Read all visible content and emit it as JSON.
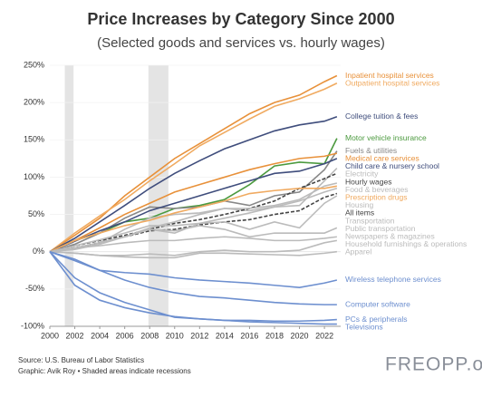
{
  "chart_data": {
    "type": "line",
    "title": "Price Increases by Category Since 2000",
    "subtitle": "(Selected goods and services vs. hourly wages)",
    "source": "Source: U.S. Bureau of Labor Statistics",
    "credit": "Graphic: Avik Roy • Shaded areas indicate recessions",
    "logo": "FREOPP.org",
    "x": [
      2000,
      2002,
      2004,
      2006,
      2008,
      2010,
      2012,
      2014,
      2016,
      2018,
      2020,
      2022,
      2023
    ],
    "xlim": [
      2000,
      2023.3
    ],
    "xticks": [
      2000,
      2002,
      2004,
      2006,
      2008,
      2010,
      2012,
      2014,
      2016,
      2018,
      2020,
      2022
    ],
    "ylim": [
      -100,
      250
    ],
    "yticks": [
      {
        "value": -100,
        "label": "-100%"
      },
      {
        "value": -50,
        "label": "-50%"
      },
      {
        "value": 0,
        "label": "0%"
      },
      {
        "value": 50,
        "label": "50%"
      },
      {
        "value": 100,
        "label": "100%"
      },
      {
        "value": 150,
        "label": "150%"
      },
      {
        "value": 200,
        "label": "200%"
      },
      {
        "value": 250,
        "label": "250%"
      }
    ],
    "recessions": [
      [
        2001.2,
        2001.9
      ],
      [
        2007.9,
        2009.5
      ]
    ],
    "series": [
      {
        "name": "Inpatient hospital services",
        "color": "#e8913a",
        "values": [
          0,
          22,
          45,
          75,
          100,
          125,
          145,
          165,
          185,
          200,
          210,
          228,
          236
        ]
      },
      {
        "name": "Outpatient hospital services",
        "color": "#f0aa60",
        "values": [
          0,
          25,
          48,
          70,
          95,
          118,
          142,
          160,
          178,
          195,
          205,
          218,
          226
        ]
      },
      {
        "name": "College tuition & fees",
        "color": "#3f4d7c",
        "values": [
          0,
          18,
          40,
          62,
          85,
          105,
          122,
          138,
          150,
          162,
          170,
          175,
          181
        ]
      },
      {
        "name": "Motor vehicle insurance",
        "color": "#4c9a3f",
        "values": [
          0,
          15,
          25,
          40,
          45,
          58,
          62,
          70,
          90,
          115,
          120,
          118,
          152
        ]
      },
      {
        "name": "Fuels & utilities",
        "color": "#888888",
        "values": [
          0,
          10,
          25,
          45,
          60,
          58,
          60,
          68,
          62,
          75,
          80,
          110,
          135
        ]
      },
      {
        "name": "Medical care services",
        "color": "#e8913a",
        "values": [
          0,
          15,
          32,
          50,
          65,
          80,
          90,
          100,
          110,
          118,
          125,
          128,
          132
        ]
      },
      {
        "name": "Child care & nursery school",
        "color": "#3f4d7c",
        "values": [
          0,
          14,
          28,
          40,
          55,
          65,
          75,
          85,
          95,
          105,
          108,
          118,
          125
        ]
      },
      {
        "name": "Electricity",
        "color": "#bbbbbb",
        "values": [
          0,
          5,
          12,
          30,
          45,
          50,
          52,
          58,
          55,
          60,
          62,
          95,
          112
        ]
      },
      {
        "name": "Hourly wages",
        "color": "#444444",
        "dashed": true,
        "values": [
          0,
          8,
          15,
          22,
          30,
          38,
          43,
          50,
          58,
          68,
          85,
          98,
          105
        ]
      },
      {
        "name": "Food & beverages",
        "color": "#bbbbbb",
        "values": [
          0,
          5,
          12,
          20,
          32,
          40,
          50,
          58,
          58,
          62,
          70,
          88,
          92
        ]
      },
      {
        "name": "Prescription drugs",
        "color": "#f0aa60",
        "values": [
          0,
          15,
          25,
          35,
          42,
          52,
          60,
          68,
          78,
          82,
          85,
          85,
          88
        ]
      },
      {
        "name": "Housing",
        "color": "#bbbbbb",
        "values": [
          0,
          8,
          16,
          25,
          35,
          35,
          38,
          45,
          52,
          60,
          68,
          80,
          85
        ]
      },
      {
        "name": "All items",
        "color": "#444444",
        "dashed": true,
        "values": [
          0,
          5,
          12,
          20,
          28,
          30,
          36,
          40,
          43,
          50,
          55,
          73,
          78
        ]
      },
      {
        "name": "Transportation",
        "color": "#bbbbbb",
        "values": [
          0,
          3,
          10,
          20,
          30,
          25,
          38,
          40,
          30,
          40,
          32,
          65,
          75
        ]
      },
      {
        "name": "Public transportation",
        "color": "#bbbbbb",
        "values": [
          0,
          5,
          12,
          20,
          30,
          28,
          35,
          30,
          20,
          25,
          25,
          25,
          32
        ]
      },
      {
        "name": "Newspapers & magazines",
        "color": "#bbbbbb",
        "values": [
          0,
          5,
          8,
          12,
          15,
          15,
          18,
          20,
          18,
          15,
          15,
          18,
          20
        ]
      },
      {
        "name": "Household furnishings & operations",
        "color": "#bbbbbb",
        "values": [
          0,
          -2,
          -5,
          -5,
          -3,
          -5,
          0,
          2,
          0,
          0,
          2,
          12,
          15
        ]
      },
      {
        "name": "Apparel",
        "color": "#bbbbbb",
        "values": [
          0,
          -2,
          -5,
          -7,
          -8,
          -8,
          -2,
          -2,
          -3,
          -4,
          -5,
          -2,
          0
        ]
      },
      {
        "name": "Wireless telephone services",
        "color": "#6d8fcf",
        "values": [
          0,
          -10,
          -25,
          -28,
          -30,
          -35,
          -38,
          -40,
          -42,
          -45,
          -48,
          -42,
          -38
        ]
      },
      {
        "name": "Computer software",
        "color": "#6d8fcf",
        "values": [
          0,
          -12,
          -25,
          -38,
          -48,
          -55,
          -60,
          -62,
          -65,
          -68,
          -70,
          -71,
          -71
        ]
      },
      {
        "name": "PCs & peripherals",
        "color": "#6d8fcf",
        "values": [
          0,
          -45,
          -65,
          -75,
          -82,
          -87,
          -90,
          -92,
          -92,
          -93,
          -93,
          -92,
          -91
        ]
      },
      {
        "name": "Televisions",
        "color": "#6d8fcf",
        "values": [
          0,
          -35,
          -55,
          -68,
          -78,
          -88,
          -90,
          -92,
          -94,
          -95,
          -96,
          -97,
          -97
        ]
      }
    ]
  }
}
